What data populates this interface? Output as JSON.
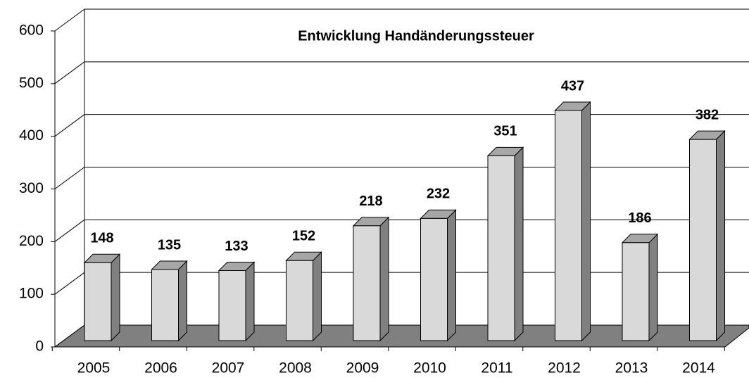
{
  "chart_data": {
    "type": "bar3d",
    "title": "Entwicklung Handänderungssteuer",
    "categories": [
      "2005",
      "2006",
      "2007",
      "2008",
      "2009",
      "2010",
      "2011",
      "2012",
      "2013",
      "2014"
    ],
    "values": [
      148,
      135,
      133,
      152,
      218,
      232,
      351,
      437,
      186,
      382
    ],
    "color": "#d9d9d9",
    "side_color": "#808080",
    "top_color": "#a6a6a6",
    "floor_color": "#808080",
    "ylim": [
      0,
      600
    ],
    "yticks": [
      0,
      100,
      200,
      300,
      400,
      500,
      600
    ],
    "grid": true
  }
}
